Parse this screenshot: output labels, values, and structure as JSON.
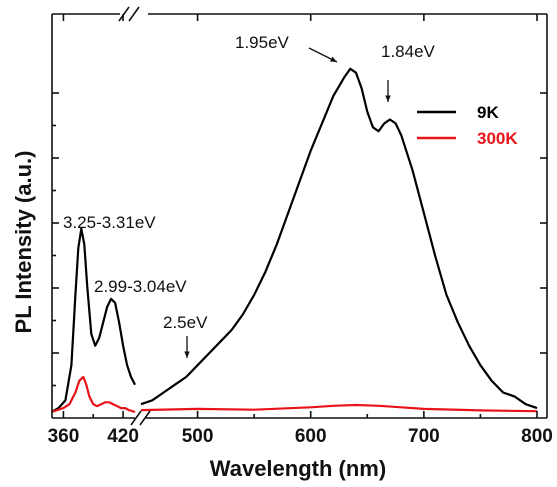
{
  "chart_data": {
    "type": "line",
    "xlabel": "Wavelength (nm)",
    "ylabel": "PL Intensity (a.u.)",
    "x_tick_labels": [
      "360",
      "420",
      "500",
      "600",
      "700",
      "800"
    ],
    "axis_break": "between 430 and 450 nm",
    "y_tick_labels_shown": false,
    "legend_position": "top-right",
    "annotations": [
      {
        "text": "1.95eV",
        "x": 633
      },
      {
        "text": "1.84eV",
        "x": 672
      },
      {
        "text": "3.25-3.31eV",
        "x": 378
      },
      {
        "text": "2.99-3.04eV",
        "x": 410
      },
      {
        "text": "2.5eV",
        "x": 497
      }
    ],
    "series": [
      {
        "name": "9K",
        "color": "#000000",
        "segments": [
          {
            "x": [
              348,
              355,
              362,
              368,
              372,
              375,
              378,
              381,
              384,
              388,
              392,
              396,
              400,
              404,
              408,
              412,
              416,
              420,
              424,
              428,
              432
            ],
            "y": [
              0.0,
              0.01,
              0.03,
              0.12,
              0.3,
              0.42,
              0.47,
              0.43,
              0.32,
              0.2,
              0.17,
              0.19,
              0.23,
              0.27,
              0.29,
              0.28,
              0.23,
              0.17,
              0.12,
              0.09,
              0.07
            ]
          },
          {
            "x": [
              450,
              460,
              470,
              480,
              490,
              500,
              510,
              520,
              530,
              540,
              550,
              560,
              570,
              580,
              590,
              600,
              610,
              620,
              630,
              635,
              640,
              645,
              650,
              655,
              660,
              665,
              670,
              675,
              680,
              690,
              700,
              710,
              720,
              730,
              740,
              750,
              760,
              770,
              780,
              790,
              800
            ],
            "y": [
              0.02,
              0.03,
              0.05,
              0.07,
              0.09,
              0.12,
              0.15,
              0.18,
              0.21,
              0.25,
              0.3,
              0.36,
              0.43,
              0.51,
              0.59,
              0.67,
              0.74,
              0.81,
              0.86,
              0.88,
              0.87,
              0.83,
              0.77,
              0.73,
              0.72,
              0.74,
              0.75,
              0.74,
              0.71,
              0.62,
              0.51,
              0.4,
              0.3,
              0.23,
              0.17,
              0.12,
              0.08,
              0.05,
              0.04,
              0.02,
              0.01
            ]
          }
        ]
      },
      {
        "name": "300K",
        "color": "#e8141a",
        "segments": [
          {
            "x": [
              348,
              360,
              366,
              372,
              376,
              380,
              383,
              386,
              390,
              394,
              398,
              402,
              406,
              410,
              414,
              418,
              422,
              426,
              432
            ],
            "y": [
              0.0,
              0.01,
              0.02,
              0.05,
              0.08,
              0.09,
              0.07,
              0.04,
              0.02,
              0.015,
              0.02,
              0.025,
              0.025,
              0.02,
              0.015,
              0.01,
              0.01,
              0.005,
              0.0
            ]
          },
          {
            "x": [
              450,
              500,
              550,
              600,
              620,
              640,
              660,
              680,
              700,
              750,
              800
            ],
            "y": [
              0.005,
              0.008,
              0.006,
              0.012,
              0.016,
              0.018,
              0.016,
              0.012,
              0.008,
              0.004,
              0.002
            ]
          }
        ]
      }
    ]
  }
}
